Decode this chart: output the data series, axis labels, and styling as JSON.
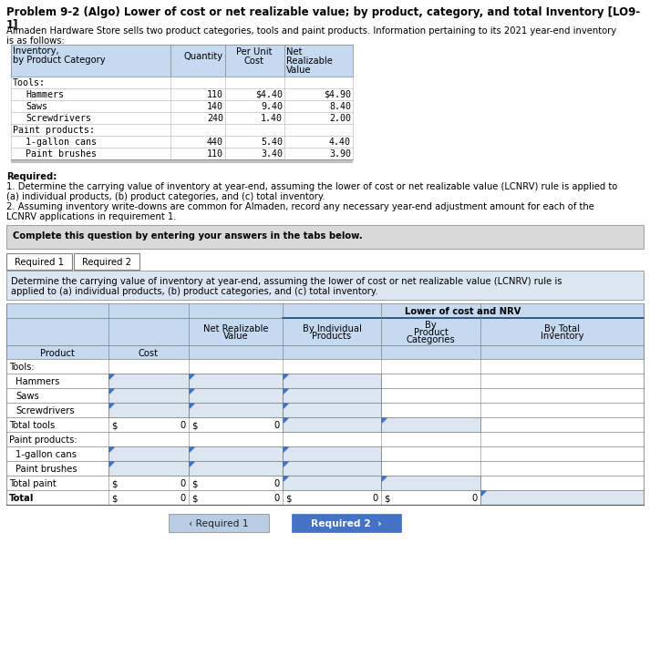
{
  "title_line1": "Problem 9-2 (Algo) Lower of cost or net realizable value; by product, category, and total Inventory [LO9-",
  "title_line2": "1]",
  "intro_line1": "Almaden Hardware Store sells two product categories, tools and paint products. Information pertaining to its 2021 year-end inventory",
  "intro_line2": "is as follows:",
  "top_table_rows": [
    [
      "Tools:",
      "",
      "",
      ""
    ],
    [
      "  Hammers",
      "110",
      "$4.40",
      "$4.90"
    ],
    [
      "  Saws",
      "140",
      "9.40",
      "8.40"
    ],
    [
      "  Screwdrivers",
      "240",
      "1.40",
      "2.00"
    ],
    [
      "Paint products:",
      "",
      "",
      ""
    ],
    [
      "  1-gallon cans",
      "440",
      "5.40",
      "4.40"
    ],
    [
      "  Paint brushes",
      "110",
      "3.40",
      "3.90"
    ]
  ],
  "req_label": "Required:",
  "req1a": "1. Determine the carrying value of inventory at year-end, assuming the lower of cost or net realizable value (LCNRV) rule is applied to",
  "req1b": "(a) individual products, (b) product categories, and (c) total inventory.",
  "req2a": "2. Assuming inventory write-downs are common for Almaden, record any necessary year-end adjustment amount for each of the",
  "req2b": "LCNRV applications in requirement 1.",
  "complete_text": "Complete this question by entering your answers in the tabs below.",
  "tab1": "Required 1",
  "tab2": "Required 2",
  "instr1": "Determine the carrying value of inventory at year-end, assuming the lower of cost or net realizable value (LCNRV) rule is",
  "instr2": "applied to (a) individual products, (b) product categories, and (c) total inventory.",
  "lcnrv_header": "Lower of cost and NRV",
  "bottom_rows": [
    {
      "label": "Tools:",
      "indent": false,
      "is_total": false,
      "is_subtotal": false,
      "is_category": true
    },
    {
      "label": "Hammers",
      "indent": true,
      "is_total": false,
      "is_subtotal": false,
      "is_category": false
    },
    {
      "label": "Saws",
      "indent": true,
      "is_total": false,
      "is_subtotal": false,
      "is_category": false
    },
    {
      "label": "Screwdrivers",
      "indent": true,
      "is_total": false,
      "is_subtotal": false,
      "is_category": false
    },
    {
      "label": "Total tools",
      "indent": false,
      "is_total": false,
      "is_subtotal": true,
      "is_category": false
    },
    {
      "label": "Paint products:",
      "indent": false,
      "is_total": false,
      "is_subtotal": false,
      "is_category": true
    },
    {
      "label": "1-gallon cans",
      "indent": true,
      "is_total": false,
      "is_subtotal": false,
      "is_category": false
    },
    {
      "label": "Paint brushes",
      "indent": true,
      "is_total": false,
      "is_subtotal": false,
      "is_category": false
    },
    {
      "label": "Total paint",
      "indent": false,
      "is_total": false,
      "is_subtotal": true,
      "is_category": false
    },
    {
      "label": "Total",
      "indent": false,
      "is_total": true,
      "is_subtotal": false,
      "is_category": false
    }
  ],
  "bg_white": "#ffffff",
  "blue_light": "#c5d9f1",
  "blue_mid": "#dce6f1",
  "blue_dark": "#4472c4",
  "grey_bg": "#d9d9d9",
  "grey_tab": "#f0f0f0",
  "border_dark": "#595959",
  "border_mid": "#808080",
  "border_light": "#bfbfbf",
  "btn_grey": "#b8cce4",
  "font_main": 7.2,
  "font_title": 8.5
}
